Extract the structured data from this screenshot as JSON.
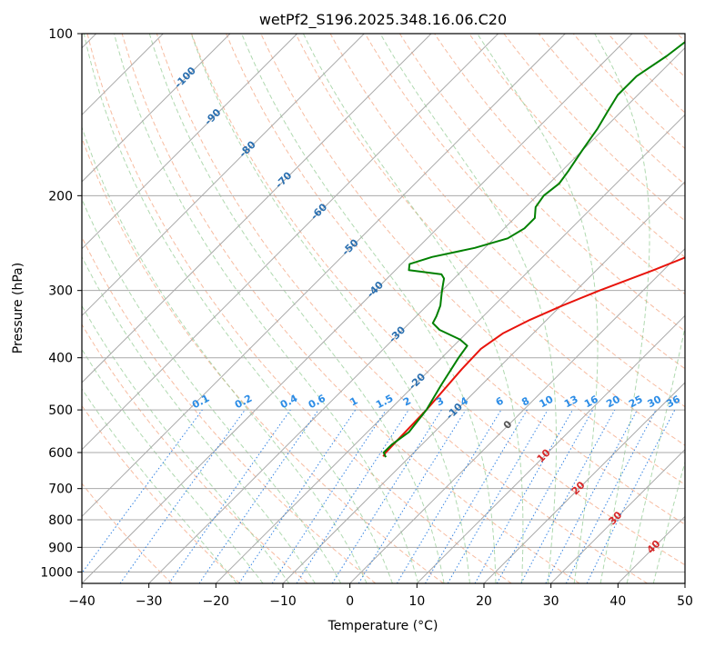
{
  "chart_data": {
    "type": "skew-t",
    "title": "wetPf2_S196.2025.348.16.06.C20",
    "xlabel": "Temperature (°C)",
    "ylabel": "Pressure (hPa)",
    "xlim": [
      -40,
      50
    ],
    "plim": [
      1050,
      100
    ],
    "x_ticks": [
      -40,
      -30,
      -20,
      -10,
      0,
      10,
      20,
      30,
      40,
      50
    ],
    "p_ticks": [
      100,
      200,
      300,
      400,
      500,
      600,
      700,
      800,
      900,
      1000
    ],
    "dry_adiabat_labels": [
      -100,
      -90,
      -80,
      -70,
      -60,
      -50,
      -40,
      -30,
      -20,
      -10,
      0,
      10,
      20,
      30,
      40
    ],
    "mixing_ratio_labels": [
      "0.1",
      "0.2",
      "0.4",
      "0.6",
      "1",
      "1.5",
      "2",
      "3",
      "4",
      "6",
      "8",
      "10",
      "13",
      "16",
      "20",
      "25",
      "30",
      "36"
    ],
    "series": [
      {
        "name": "Temperature",
        "color": "#e8140c",
        "points": [
          [
            610,
            -14.0
          ],
          [
            600,
            -14.2
          ],
          [
            500,
            -14.5
          ],
          [
            420,
            -15.3
          ],
          [
            385,
            -15.5
          ],
          [
            360,
            -14.5
          ],
          [
            340,
            -12.5
          ],
          [
            320,
            -9.8
          ],
          [
            300,
            -6.5
          ],
          [
            275,
            -1.5
          ],
          [
            250,
            3.5
          ],
          [
            225,
            8.5
          ],
          [
            200,
            14.0
          ],
          [
            180,
            18.0
          ],
          [
            160,
            22.5
          ],
          [
            140,
            26.5
          ],
          [
            120,
            30.0
          ],
          [
            100,
            33.5
          ]
        ]
      },
      {
        "name": "Dewpoint",
        "color": "#008000",
        "points": [
          [
            612,
            -13.5
          ],
          [
            600,
            -14.5
          ],
          [
            580,
            -14.5
          ],
          [
            550,
            -13.8
          ],
          [
            500,
            -14.5
          ],
          [
            450,
            -16.0
          ],
          [
            400,
            -17.5
          ],
          [
            380,
            -18.0
          ],
          [
            370,
            -20.0
          ],
          [
            355,
            -24.5
          ],
          [
            345,
            -26.5
          ],
          [
            335,
            -27.0
          ],
          [
            320,
            -28.0
          ],
          [
            305,
            -29.5
          ],
          [
            295,
            -30.5
          ],
          [
            285,
            -31.5
          ],
          [
            280,
            -32.5
          ],
          [
            275,
            -38.0
          ],
          [
            268,
            -38.8
          ],
          [
            260,
            -36.5
          ],
          [
            250,
            -31.5
          ],
          [
            240,
            -28.0
          ],
          [
            230,
            -27.0
          ],
          [
            220,
            -27.0
          ],
          [
            210,
            -28.5
          ],
          [
            200,
            -29.0
          ],
          [
            190,
            -28.5
          ],
          [
            180,
            -29.0
          ],
          [
            165,
            -30.0
          ],
          [
            150,
            -31.0
          ],
          [
            140,
            -32.0
          ],
          [
            130,
            -33.0
          ],
          [
            120,
            -33.0
          ],
          [
            110,
            -31.5
          ],
          [
            100,
            -30.5
          ]
        ]
      }
    ]
  }
}
